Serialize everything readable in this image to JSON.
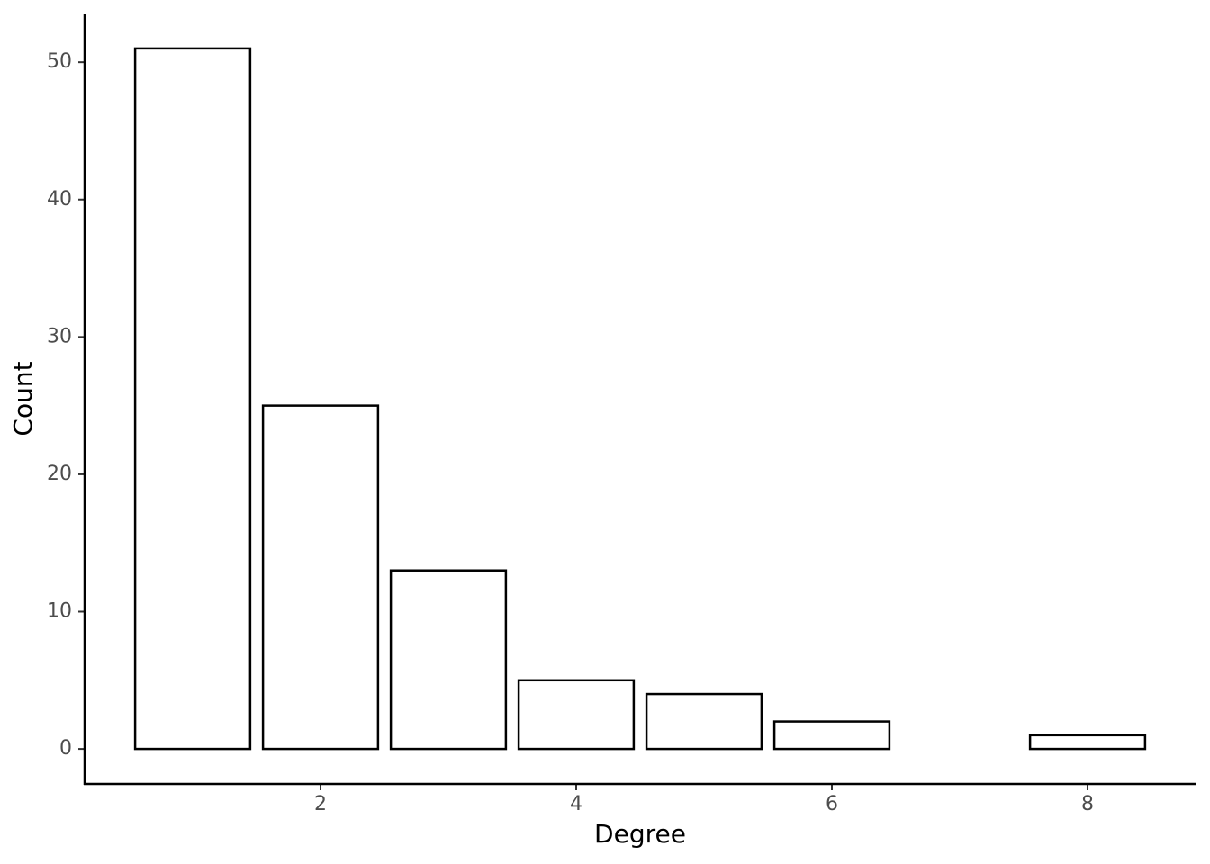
{
  "chart_data": {
    "type": "bar",
    "x_label": "Degree",
    "y_label": "Count",
    "x": [
      1,
      2,
      3,
      4,
      5,
      6,
      8
    ],
    "values": [
      51,
      25,
      13,
      5,
      4,
      2,
      1
    ],
    "color": "#ffffff",
    "edge_color": "#000000",
    "xlim": [
      0.155,
      8.845
    ],
    "xticks": [
      2,
      4,
      6,
      8
    ],
    "ylim": [
      -2.55,
      53.55
    ],
    "yticks": [
      0,
      10,
      20,
      30,
      40,
      50
    ],
    "grid": false
  }
}
